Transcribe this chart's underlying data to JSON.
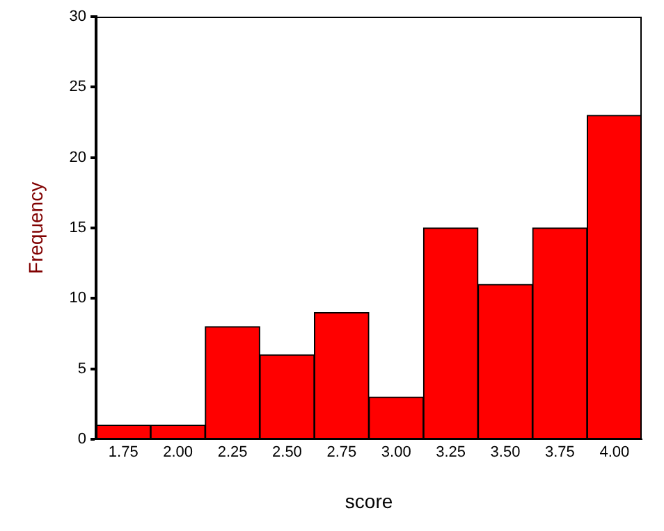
{
  "chart_data": {
    "type": "histogram",
    "xlabel": "score",
    "ylabel": "Frequency",
    "bins": [
      1.625,
      1.875,
      2.125,
      2.375,
      2.625,
      2.875,
      3.125,
      3.375,
      3.625,
      3.875,
      4.125
    ],
    "values": [
      1,
      1,
      8,
      6,
      9,
      3,
      15,
      11,
      15,
      23
    ],
    "color": "#ff0000",
    "xlim": [
      1.625,
      4.125
    ],
    "xticks": [
      {
        "value": 1.75,
        "label": "1.75"
      },
      {
        "value": 2,
        "label": "2.00"
      },
      {
        "value": 2.25,
        "label": "2.25"
      },
      {
        "value": 2.5,
        "label": "2.50"
      },
      {
        "value": 2.75,
        "label": "2.75"
      },
      {
        "value": 3,
        "label": "3.00"
      },
      {
        "value": 3.25,
        "label": "3.25"
      },
      {
        "value": 3.5,
        "label": "3.50"
      },
      {
        "value": 3.75,
        "label": "3.75"
      },
      {
        "value": 4,
        "label": "4.00"
      }
    ],
    "ylim": [
      0,
      30
    ],
    "yticks": [
      0,
      5,
      10,
      15,
      20,
      25,
      30
    ],
    "grid": false,
    "legend": false
  }
}
